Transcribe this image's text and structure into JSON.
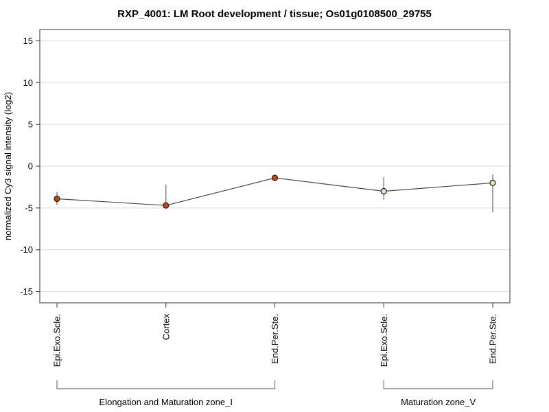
{
  "chart_data": {
    "type": "line",
    "title": "RXP_4001: LM Root development / tissue; Os01g0108500_29755",
    "ylabel": "normalized Cy3 signal intensity (log2)",
    "xlabel": "",
    "ylim": [
      -16.35,
      16.35
    ],
    "yticks": [
      15,
      10,
      5,
      0,
      -5,
      -10,
      -15
    ],
    "grid": "horizontal",
    "legend_position": "none",
    "categories": [
      "Epi.Exo.Scle.",
      "Cortex",
      "End.Per.Ste.",
      "Epi.Exo.Scle.",
      "End.Per.Ste."
    ],
    "groups": [
      {
        "label": "Elongation and Maturation zone_I",
        "from": 0,
        "to": 2
      },
      {
        "label": "Maturation zone_V",
        "from": 3,
        "to": 4
      }
    ],
    "series": [
      {
        "name": "normalized Cy3 signal intensity (log2)",
        "values": [
          -3.9,
          -4.7,
          -1.4,
          -3.0,
          -2.0
        ],
        "error_high": [
          -3.1,
          -2.2,
          -1.1,
          -1.3,
          -1.0
        ],
        "error_low": [
          -4.6,
          -5.0,
          -1.7,
          -4.0,
          -5.5
        ],
        "marker_filled": [
          true,
          true,
          true,
          false,
          false
        ]
      }
    ],
    "colors": {
      "marker_fill_present": "#cc4400",
      "marker_fill_absent": "#e6e6b4",
      "marker_stroke": "#1a1a1a",
      "series_line": "#4a4a4a",
      "error_bar": "#707070",
      "gridline": "#e3e3e3",
      "frame": "#555555",
      "tick": "#555555",
      "bracket": "#888888",
      "text": "#000000"
    }
  }
}
